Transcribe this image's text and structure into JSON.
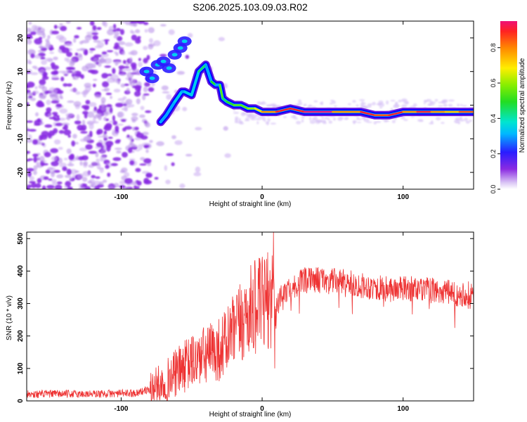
{
  "chart_data": [
    {
      "type": "heatmap",
      "title": "S206.2025.103.09.03.R02",
      "xlabel": "Height of straight line (km)",
      "ylabel": "Frequency (Hz)",
      "xlim": [
        -167,
        150
      ],
      "ylim": [
        -25,
        25
      ],
      "xticks": [
        -100,
        0,
        100
      ],
      "xtick_labels": [
        "-100",
        "0",
        "100"
      ],
      "yticks": [
        -20,
        -10,
        0,
        10,
        20
      ],
      "ytick_labels": [
        "-20",
        "-10",
        "0",
        "10",
        "20"
      ],
      "colorbar": {
        "label": "Normalized spectral amplitude",
        "range": [
          0,
          0.95
        ],
        "ticks": [
          0.0,
          0.2,
          0.4,
          0.6,
          0.8
        ],
        "tick_labels": [
          "0.0",
          "0.2",
          "0.4",
          "0.6",
          "0.8"
        ]
      },
      "ridge": {
        "x": [
          -72,
          -68,
          -62,
          -57,
          -55,
          -50,
          -45,
          -40,
          -36,
          -33,
          -30,
          -28,
          -25,
          -20,
          -15,
          -10,
          -5,
          0,
          10,
          20,
          30,
          40,
          50,
          60,
          70,
          80,
          90,
          100,
          110,
          120,
          130,
          140,
          150
        ],
        "frequency": [
          -5,
          -3,
          1,
          4,
          4,
          3,
          10,
          12,
          7,
          6,
          6,
          2,
          1,
          0,
          0,
          -1,
          -1,
          -2,
          -2,
          -1,
          -2,
          -2,
          -2,
          -2,
          -2,
          -3,
          -3,
          -2,
          -2,
          -2,
          -2,
          -2,
          -2
        ],
        "amplitude": [
          0.3,
          0.3,
          0.35,
          0.3,
          0.35,
          0.35,
          0.45,
          0.3,
          0.5,
          0.3,
          0.55,
          0.45,
          0.5,
          0.55,
          0.55,
          0.6,
          0.7,
          0.8,
          0.9,
          0.9,
          0.95,
          0.95,
          0.8,
          0.8,
          0.9,
          0.85,
          0.9,
          0.8,
          0.9,
          0.8,
          0.75,
          0.85,
          0.7
        ]
      },
      "upper_cluster": {
        "x": [
          -82,
          -78,
          -74,
          -70,
          -66,
          -62,
          -58,
          -55
        ],
        "frequency": [
          10,
          8,
          12,
          13,
          11,
          15,
          17,
          19
        ]
      }
    },
    {
      "type": "line",
      "title": "",
      "xlabel": "Height of straight line (km)",
      "ylabel": "SNR (10 * v/v)",
      "xlim": [
        -167,
        150
      ],
      "ylim": [
        0,
        520
      ],
      "xticks": [
        -100,
        0,
        100
      ],
      "xtick_labels": [
        "-100",
        "0",
        "100"
      ],
      "yticks": [
        0,
        100,
        200,
        300,
        400,
        500
      ],
      "ytick_labels": [
        "0",
        "100",
        "200",
        "300",
        "400",
        "500"
      ],
      "color": "#ee3333",
      "series": [
        {
          "name": "SNR",
          "x": [
            -167,
            -150,
            -130,
            -110,
            -90,
            -80,
            -70,
            -60,
            -50,
            -40,
            -30,
            -20,
            -15,
            -10,
            -5,
            0,
            5,
            8,
            10,
            15,
            20,
            30,
            40,
            50,
            60,
            70,
            80,
            90,
            100,
            110,
            120,
            130,
            140,
            150
          ],
          "values": [
            20,
            22,
            21,
            22,
            24,
            35,
            55,
            90,
            120,
            140,
            160,
            210,
            240,
            270,
            290,
            300,
            310,
            330,
            290,
            330,
            350,
            370,
            375,
            370,
            365,
            355,
            350,
            345,
            345,
            345,
            340,
            335,
            330,
            330
          ]
        }
      ],
      "spikes": [
        {
          "x": 8,
          "value": 520
        },
        {
          "x": 9,
          "value": 100
        },
        {
          "x": -12,
          "value": 330
        },
        {
          "x": -22,
          "value": 270
        }
      ]
    }
  ]
}
